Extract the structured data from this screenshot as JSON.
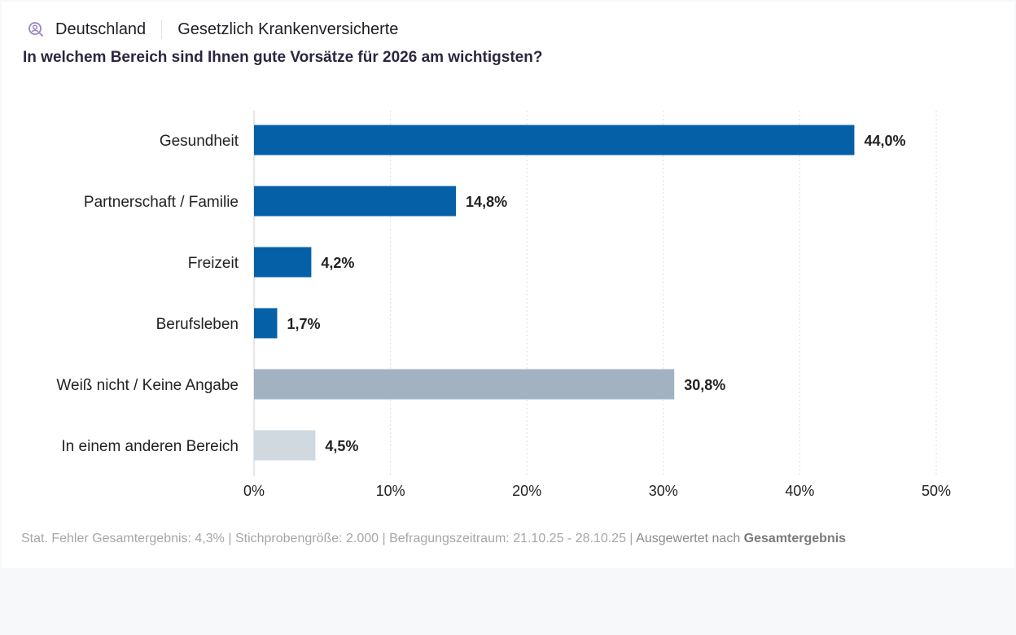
{
  "header": {
    "icon": "search-user-icon",
    "country": "Deutschland",
    "segment": "Gesetzlich Krankenversicherte",
    "question": "In welchem Bereich sind Ihnen gute Vorsätze für 2026 am wichtigsten?"
  },
  "chart_data": {
    "type": "bar",
    "orientation": "horizontal",
    "categories": [
      "Gesundheit",
      "Partnerschaft / Familie",
      "Freizeit",
      "Berufsleben",
      "Weiß nicht / Keine Angabe",
      "In einem anderen Bereich"
    ],
    "values": [
      44.0,
      14.8,
      4.2,
      1.7,
      30.8,
      4.5
    ],
    "data_labels": [
      "44,0%",
      "14,8%",
      "4,2%",
      "1,7%",
      "30,8%",
      "4,5%"
    ],
    "colors": [
      "#0560a8",
      "#0560a8",
      "#0560a8",
      "#0560a8",
      "#a2b2c1",
      "#cfd9df"
    ],
    "xlim": [
      0,
      50
    ],
    "xticks": [
      0,
      10,
      20,
      30,
      40,
      50
    ],
    "xtick_labels": [
      "0%",
      "10%",
      "20%",
      "30%",
      "40%",
      "50%"
    ],
    "grid": true,
    "xlabel": "",
    "ylabel": ""
  },
  "footer": {
    "stats": "Stat. Fehler Gesamtergebnis: 4,3% | Stichprobengröße: 2.000 | Befragungszeitraum: 21.10.25 - 28.10.25 |",
    "by_label": "Ausgewertet nach",
    "by_value": "Gesamtergebnis"
  }
}
